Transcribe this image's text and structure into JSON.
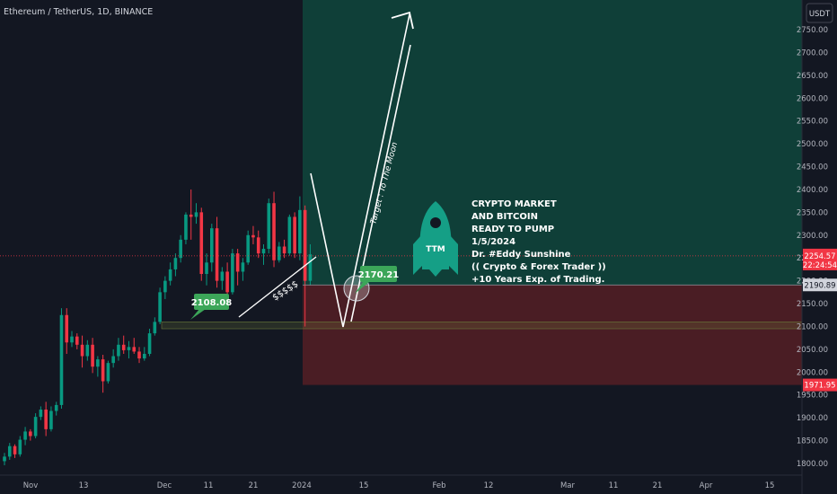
{
  "header": {
    "symbol_line": "Ethereum / TetherUS, 1D, BINANCE"
  },
  "currency_button": "USDT",
  "colors": {
    "background": "#131722",
    "up": "#089981",
    "down": "#f23645",
    "long_zone": "#0f3f38",
    "short_zone": "#4a1d24",
    "text": "#b2b5be",
    "annotation": "#ffffff",
    "label_green": "#3ca659"
  },
  "chart_data": {
    "type": "candlestick",
    "instrument": "Ethereum / TetherUS",
    "interval": "1D",
    "exchange": "BINANCE",
    "ylim": [
      1790,
      2820
    ],
    "y_ticks": [
      1800,
      1850,
      1900,
      1950,
      2000,
      2050,
      2100,
      2150,
      2200,
      2250,
      2300,
      2350,
      2400,
      2450,
      2500,
      2550,
      2600,
      2650,
      2700,
      2750
    ],
    "x_ticks": [
      "Nov",
      "13",
      "Dec",
      "11",
      "21",
      "2024",
      "15",
      "Feb",
      "12",
      "Mar",
      "11",
      "21",
      "Apr",
      "15"
    ],
    "ohlc": [
      [
        1805,
        1823,
        1796,
        1815
      ],
      [
        1815,
        1845,
        1808,
        1838
      ],
      [
        1838,
        1842,
        1812,
        1820
      ],
      [
        1820,
        1860,
        1815,
        1852
      ],
      [
        1852,
        1880,
        1840,
        1870
      ],
      [
        1870,
        1875,
        1850,
        1860
      ],
      [
        1860,
        1910,
        1855,
        1902
      ],
      [
        1902,
        1925,
        1895,
        1918
      ],
      [
        1918,
        1935,
        1860,
        1875
      ],
      [
        1875,
        1925,
        1870,
        1915
      ],
      [
        1915,
        1935,
        1905,
        1928
      ],
      [
        1928,
        2140,
        1920,
        2125
      ],
      [
        2125,
        2140,
        2040,
        2065
      ],
      [
        2065,
        2090,
        2055,
        2078
      ],
      [
        2078,
        2085,
        2050,
        2060
      ],
      [
        2060,
        2080,
        2010,
        2035
      ],
      [
        2035,
        2070,
        2025,
        2060
      ],
      [
        2060,
        2075,
        1998,
        2012
      ],
      [
        2012,
        2035,
        1990,
        2028
      ],
      [
        2028,
        2038,
        1955,
        1980
      ],
      [
        1980,
        2025,
        1975,
        2020
      ],
      [
        2020,
        2050,
        2010,
        2035
      ],
      [
        2035,
        2075,
        2025,
        2060
      ],
      [
        2060,
        2080,
        2040,
        2048
      ],
      [
        2048,
        2068,
        2030,
        2055
      ],
      [
        2055,
        2075,
        2040,
        2045
      ],
      [
        2045,
        2055,
        2020,
        2030
      ],
      [
        2030,
        2055,
        2025,
        2040
      ],
      [
        2040,
        2095,
        2035,
        2085
      ],
      [
        2085,
        2120,
        2080,
        2110
      ],
      [
        2110,
        2185,
        2105,
        2175
      ],
      [
        2175,
        2210,
        2160,
        2200
      ],
      [
        2200,
        2240,
        2190,
        2225
      ],
      [
        2225,
        2260,
        2210,
        2250
      ],
      [
        2250,
        2300,
        2240,
        2290
      ],
      [
        2290,
        2350,
        2280,
        2345
      ],
      [
        2345,
        2400,
        2290,
        2340
      ],
      [
        2340,
        2370,
        2325,
        2350
      ],
      [
        2350,
        2360,
        2200,
        2215
      ],
      [
        2215,
        2260,
        2190,
        2240
      ],
      [
        2240,
        2325,
        2220,
        2315
      ],
      [
        2315,
        2340,
        2185,
        2200
      ],
      [
        2200,
        2230,
        2180,
        2220
      ],
      [
        2220,
        2240,
        2165,
        2175
      ],
      [
        2175,
        2270,
        2170,
        2260
      ],
      [
        2260,
        2270,
        2190,
        2220
      ],
      [
        2220,
        2250,
        2200,
        2240
      ],
      [
        2240,
        2310,
        2235,
        2300
      ],
      [
        2300,
        2320,
        2280,
        2295
      ],
      [
        2295,
        2310,
        2250,
        2260
      ],
      [
        2260,
        2280,
        2235,
        2270
      ],
      [
        2270,
        2380,
        2260,
        2370
      ],
      [
        2370,
        2395,
        2230,
        2245
      ],
      [
        2245,
        2285,
        2240,
        2275
      ],
      [
        2275,
        2290,
        2250,
        2260
      ],
      [
        2260,
        2345,
        2255,
        2340
      ],
      [
        2340,
        2350,
        2250,
        2260
      ],
      [
        2260,
        2385,
        2245,
        2355
      ],
      [
        2355,
        2365,
        2100,
        2200
      ],
      [
        2200,
        2280,
        2190,
        2258
      ]
    ],
    "trade_setup": {
      "entry": 2190.89,
      "target_zone_top": 2820,
      "stop": 1971.95,
      "current_price": 2254.57,
      "countdown": "22:24:54"
    },
    "support_band": [
      2095,
      2110
    ],
    "price_labels": {
      "current": "2254.57",
      "countdown": "22:24:54",
      "entry": "2190.89",
      "stop": "1971.95"
    },
    "annotations": {
      "callout_low": "2108.08",
      "callout_entry": "2170.21",
      "dollar_note": "$$$$$",
      "target_text": "Target : To The Moon",
      "rocket_label": "TTM",
      "text_block": [
        "CRYPTO MARKET",
        "AND BITCOIN",
        "READY TO PUMP",
        "1/5/2024",
        "Dr. #Eddy Sunshine",
        "(( Crypto & Forex Trader ))",
        "+10 Years Exp. of Trading."
      ]
    },
    "grid": false,
    "legend": "none"
  }
}
